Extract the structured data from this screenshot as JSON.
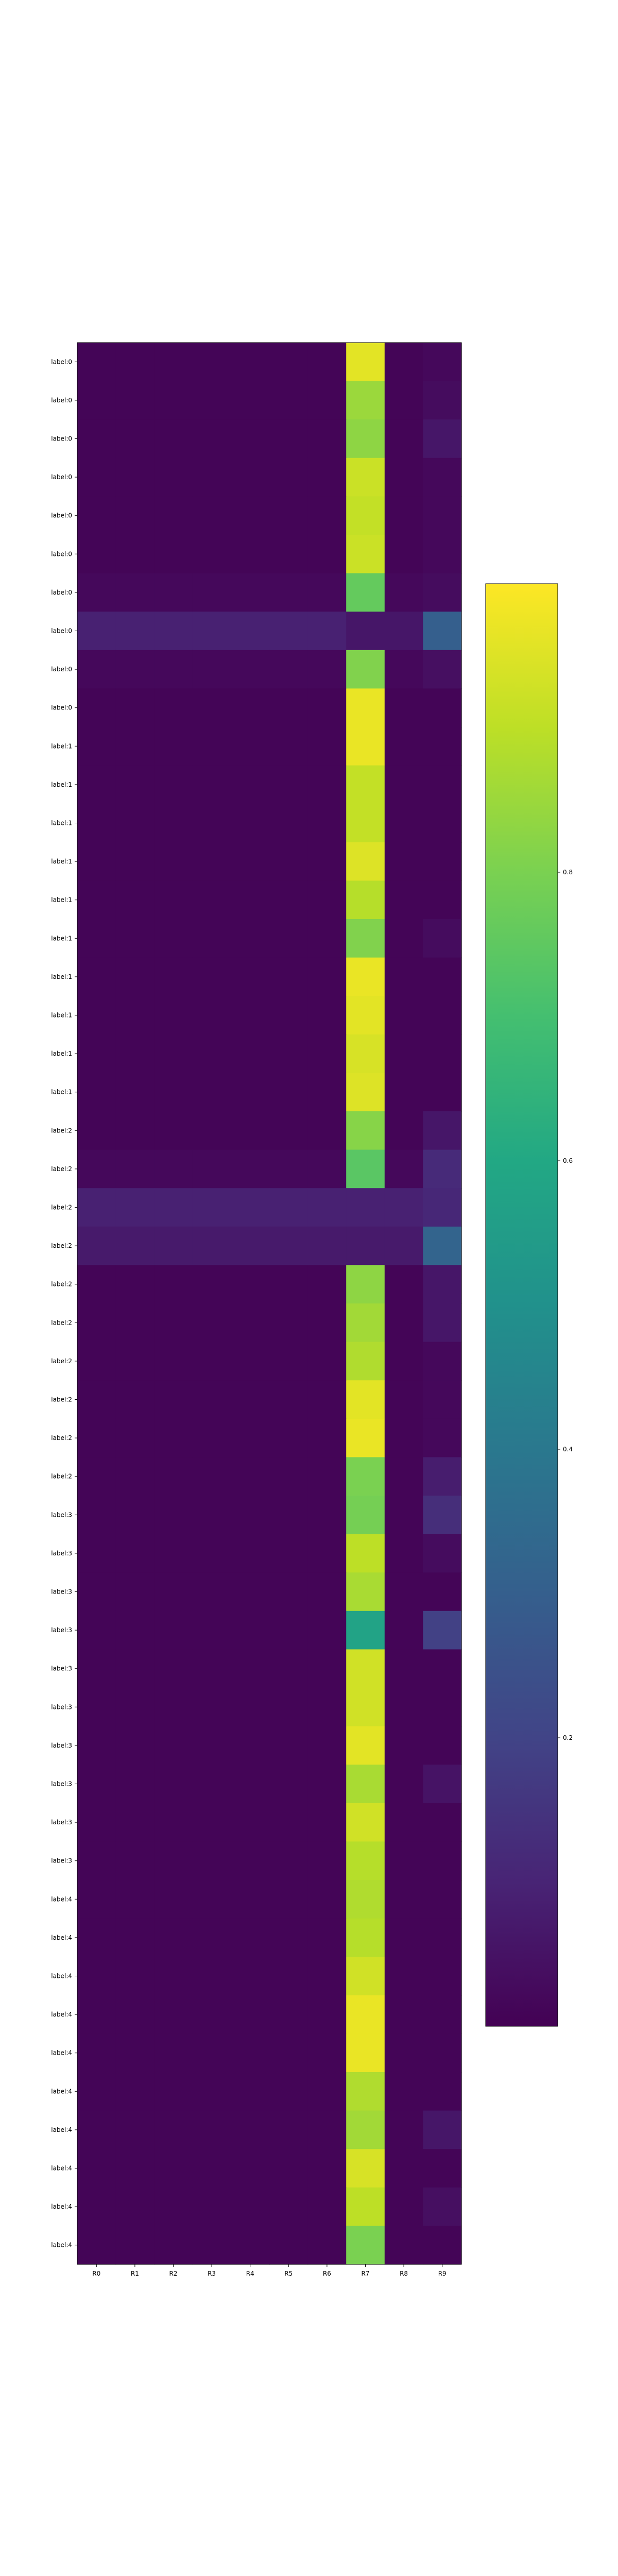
{
  "chart_data": {
    "type": "heatmap",
    "title": "",
    "xlabel": "",
    "ylabel": "",
    "x_categories": [
      "R0",
      "R1",
      "R2",
      "R3",
      "R4",
      "R5",
      "R6",
      "R7",
      "R8",
      "R9"
    ],
    "y_categories": [
      "label:0",
      "label:0",
      "label:0",
      "label:0",
      "label:0",
      "label:0",
      "label:0",
      "label:0",
      "label:0",
      "label:0",
      "label:1",
      "label:1",
      "label:1",
      "label:1",
      "label:1",
      "label:1",
      "label:1",
      "label:1",
      "label:1",
      "label:1",
      "label:2",
      "label:2",
      "label:2",
      "label:2",
      "label:2",
      "label:2",
      "label:2",
      "label:2",
      "label:2",
      "label:2",
      "label:3",
      "label:3",
      "label:3",
      "label:3",
      "label:3",
      "label:3",
      "label:3",
      "label:3",
      "label:3",
      "label:3",
      "label:4",
      "label:4",
      "label:4",
      "label:4",
      "label:4",
      "label:4",
      "label:4",
      "label:4",
      "label:4",
      "label:4"
    ],
    "values": [
      [
        0.01,
        0.01,
        0.01,
        0.01,
        0.01,
        0.01,
        0.01,
        0.96,
        0.01,
        0.02
      ],
      [
        0.01,
        0.01,
        0.01,
        0.01,
        0.01,
        0.01,
        0.01,
        0.85,
        0.01,
        0.03
      ],
      [
        0.01,
        0.01,
        0.01,
        0.01,
        0.01,
        0.01,
        0.01,
        0.83,
        0.01,
        0.06
      ],
      [
        0.01,
        0.01,
        0.01,
        0.01,
        0.01,
        0.01,
        0.01,
        0.92,
        0.01,
        0.02
      ],
      [
        0.01,
        0.01,
        0.01,
        0.01,
        0.01,
        0.01,
        0.01,
        0.91,
        0.01,
        0.02
      ],
      [
        0.01,
        0.01,
        0.01,
        0.01,
        0.01,
        0.01,
        0.01,
        0.92,
        0.01,
        0.02
      ],
      [
        0.02,
        0.02,
        0.02,
        0.02,
        0.02,
        0.02,
        0.02,
        0.76,
        0.02,
        0.03
      ],
      [
        0.09,
        0.09,
        0.09,
        0.09,
        0.09,
        0.09,
        0.09,
        0.06,
        0.06,
        0.3
      ],
      [
        0.02,
        0.02,
        0.02,
        0.02,
        0.02,
        0.02,
        0.02,
        0.81,
        0.02,
        0.04
      ],
      [
        0.01,
        0.01,
        0.01,
        0.01,
        0.01,
        0.01,
        0.01,
        0.97,
        0.01,
        0.01
      ],
      [
        0.01,
        0.01,
        0.01,
        0.01,
        0.01,
        0.01,
        0.01,
        0.97,
        0.01,
        0.01
      ],
      [
        0.01,
        0.01,
        0.01,
        0.01,
        0.01,
        0.01,
        0.01,
        0.91,
        0.01,
        0.01
      ],
      [
        0.01,
        0.01,
        0.01,
        0.01,
        0.01,
        0.01,
        0.01,
        0.91,
        0.01,
        0.01
      ],
      [
        0.01,
        0.01,
        0.01,
        0.01,
        0.01,
        0.01,
        0.01,
        0.95,
        0.01,
        0.01
      ],
      [
        0.01,
        0.01,
        0.01,
        0.01,
        0.01,
        0.01,
        0.01,
        0.89,
        0.01,
        0.01
      ],
      [
        0.01,
        0.01,
        0.01,
        0.01,
        0.01,
        0.01,
        0.01,
        0.81,
        0.01,
        0.03
      ],
      [
        0.01,
        0.01,
        0.01,
        0.01,
        0.01,
        0.01,
        0.01,
        0.97,
        0.01,
        0.01
      ],
      [
        0.01,
        0.01,
        0.01,
        0.01,
        0.01,
        0.01,
        0.01,
        0.96,
        0.01,
        0.01
      ],
      [
        0.01,
        0.01,
        0.01,
        0.01,
        0.01,
        0.01,
        0.01,
        0.94,
        0.01,
        0.01
      ],
      [
        0.01,
        0.01,
        0.01,
        0.01,
        0.01,
        0.01,
        0.01,
        0.95,
        0.01,
        0.01
      ],
      [
        0.01,
        0.01,
        0.01,
        0.01,
        0.01,
        0.01,
        0.01,
        0.82,
        0.01,
        0.06
      ],
      [
        0.02,
        0.02,
        0.02,
        0.02,
        0.02,
        0.02,
        0.02,
        0.74,
        0.02,
        0.12
      ],
      [
        0.09,
        0.09,
        0.09,
        0.09,
        0.09,
        0.09,
        0.09,
        0.09,
        0.09,
        0.11
      ],
      [
        0.07,
        0.07,
        0.07,
        0.07,
        0.07,
        0.07,
        0.07,
        0.07,
        0.07,
        0.32
      ],
      [
        0.01,
        0.01,
        0.01,
        0.01,
        0.01,
        0.01,
        0.01,
        0.83,
        0.01,
        0.06
      ],
      [
        0.01,
        0.01,
        0.01,
        0.01,
        0.01,
        0.01,
        0.01,
        0.86,
        0.01,
        0.06
      ],
      [
        0.01,
        0.01,
        0.01,
        0.01,
        0.01,
        0.01,
        0.01,
        0.88,
        0.01,
        0.02
      ],
      [
        0.01,
        0.01,
        0.01,
        0.01,
        0.01,
        0.01,
        0.01,
        0.96,
        0.01,
        0.02
      ],
      [
        0.01,
        0.01,
        0.01,
        0.01,
        0.01,
        0.01,
        0.01,
        0.97,
        0.01,
        0.02
      ],
      [
        0.01,
        0.01,
        0.01,
        0.01,
        0.01,
        0.01,
        0.01,
        0.8,
        0.01,
        0.08
      ],
      [
        0.01,
        0.01,
        0.01,
        0.01,
        0.01,
        0.01,
        0.01,
        0.79,
        0.01,
        0.13
      ],
      [
        0.01,
        0.01,
        0.01,
        0.01,
        0.01,
        0.01,
        0.01,
        0.9,
        0.01,
        0.03
      ],
      [
        0.01,
        0.01,
        0.01,
        0.01,
        0.01,
        0.01,
        0.01,
        0.87,
        0.01,
        0.01
      ],
      [
        0.01,
        0.01,
        0.01,
        0.01,
        0.01,
        0.01,
        0.01,
        0.58,
        0.01,
        0.19
      ],
      [
        0.01,
        0.01,
        0.01,
        0.01,
        0.01,
        0.01,
        0.01,
        0.93,
        0.01,
        0.01
      ],
      [
        0.01,
        0.01,
        0.01,
        0.01,
        0.01,
        0.01,
        0.01,
        0.93,
        0.01,
        0.01
      ],
      [
        0.01,
        0.01,
        0.01,
        0.01,
        0.01,
        0.01,
        0.01,
        0.96,
        0.01,
        0.01
      ],
      [
        0.01,
        0.01,
        0.01,
        0.01,
        0.01,
        0.01,
        0.01,
        0.87,
        0.01,
        0.05
      ],
      [
        0.01,
        0.01,
        0.01,
        0.01,
        0.01,
        0.01,
        0.01,
        0.93,
        0.01,
        0.01
      ],
      [
        0.01,
        0.01,
        0.01,
        0.01,
        0.01,
        0.01,
        0.01,
        0.89,
        0.01,
        0.01
      ],
      [
        0.01,
        0.01,
        0.01,
        0.01,
        0.01,
        0.01,
        0.01,
        0.88,
        0.01,
        0.01
      ],
      [
        0.01,
        0.01,
        0.01,
        0.01,
        0.01,
        0.01,
        0.01,
        0.89,
        0.01,
        0.01
      ],
      [
        0.01,
        0.01,
        0.01,
        0.01,
        0.01,
        0.01,
        0.01,
        0.93,
        0.01,
        0.01
      ],
      [
        0.01,
        0.01,
        0.01,
        0.01,
        0.01,
        0.01,
        0.01,
        0.97,
        0.01,
        0.01
      ],
      [
        0.01,
        0.01,
        0.01,
        0.01,
        0.01,
        0.01,
        0.01,
        0.97,
        0.01,
        0.01
      ],
      [
        0.01,
        0.01,
        0.01,
        0.01,
        0.01,
        0.01,
        0.01,
        0.88,
        0.01,
        0.01
      ],
      [
        0.01,
        0.01,
        0.01,
        0.01,
        0.01,
        0.01,
        0.01,
        0.86,
        0.01,
        0.06
      ],
      [
        0.01,
        0.01,
        0.01,
        0.01,
        0.01,
        0.01,
        0.01,
        0.94,
        0.01,
        0.01
      ],
      [
        0.01,
        0.01,
        0.01,
        0.01,
        0.01,
        0.01,
        0.01,
        0.9,
        0.01,
        0.04
      ],
      [
        0.01,
        0.01,
        0.01,
        0.01,
        0.01,
        0.01,
        0.01,
        0.8,
        0.01,
        0.01
      ]
    ],
    "colormap": "viridis",
    "color_range": [
      0.0,
      1.0
    ],
    "colorbar": {
      "ticks": [
        0.2,
        0.4,
        0.6,
        0.8
      ],
      "tick_labels": [
        "0.2",
        "0.4",
        "0.6",
        "0.8"
      ]
    }
  }
}
